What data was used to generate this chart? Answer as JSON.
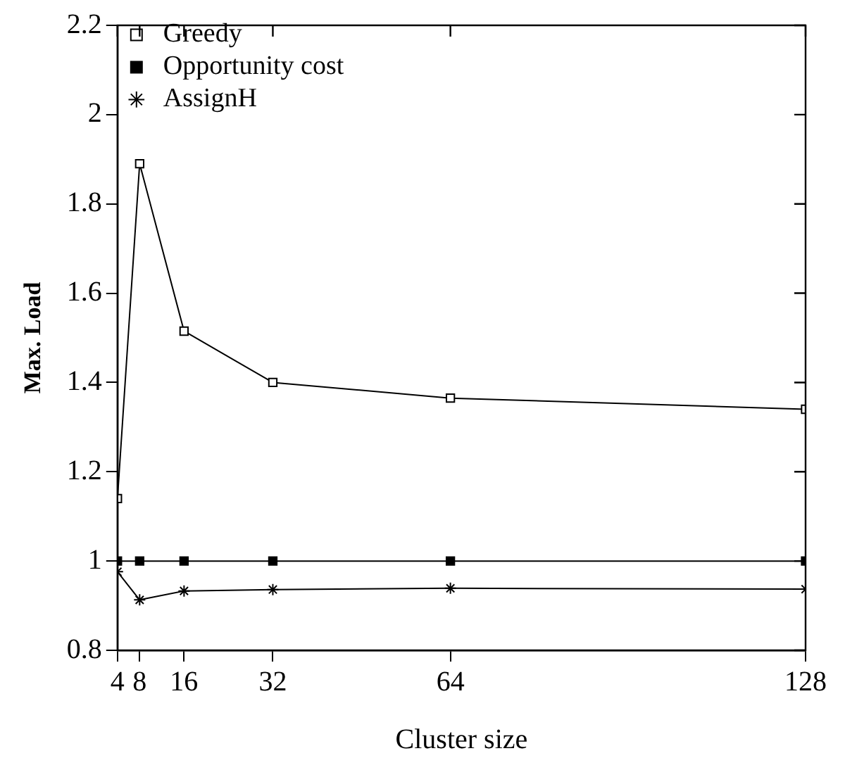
{
  "chart_data": {
    "type": "line",
    "xlabel": "Cluster size",
    "ylabel": "Max. Load",
    "x": [
      4,
      8,
      16,
      32,
      64,
      128
    ],
    "series": [
      {
        "name": "Greedy",
        "color": "#000000",
        "marker": "square_open",
        "values": [
          1.14,
          1.89,
          1.515,
          1.4,
          1.365,
          1.34
        ]
      },
      {
        "name": "Opportunity cost",
        "color": "#000000",
        "marker": "square",
        "values": [
          1.0,
          1.0,
          1.0,
          1.0,
          1.0,
          1.0
        ]
      },
      {
        "name": "AssignH",
        "color": "#000000",
        "marker": "cross",
        "values": [
          0.976,
          0.913,
          0.933,
          0.936,
          0.939,
          0.937
        ]
      }
    ],
    "xlim": [
      4,
      128
    ],
    "xticks": [
      4,
      8,
      16,
      32,
      64,
      128
    ],
    "ylim": [
      0.8,
      2.2
    ],
    "yticks": [
      0.8,
      1,
      1.2,
      1.4,
      1.6,
      1.8,
      2,
      2.2
    ],
    "grid": false,
    "legend": "top left",
    "line_style": "solid"
  }
}
